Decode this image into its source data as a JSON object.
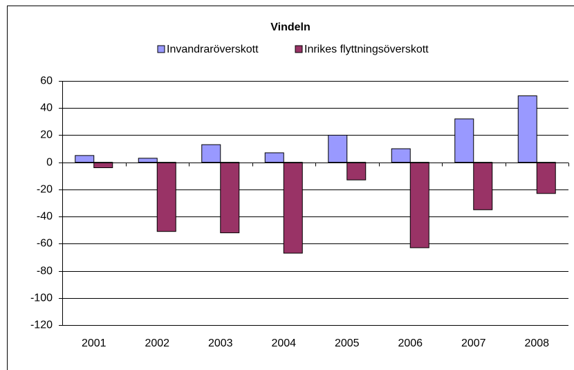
{
  "chart_data": {
    "type": "bar",
    "title": "Vindeln",
    "categories": [
      "2001",
      "2002",
      "2003",
      "2004",
      "2005",
      "2006",
      "2007",
      "2008"
    ],
    "series": [
      {
        "name": "Invandraröverskott",
        "color": "#9999ff",
        "values": [
          5,
          3,
          13,
          7,
          20,
          10,
          32,
          49
        ]
      },
      {
        "name": "Inrikes flyttningsöverskott",
        "color": "#993366",
        "values": [
          -4,
          -51,
          -52,
          -67,
          -13,
          -63,
          -35,
          -23
        ]
      }
    ],
    "ylim": [
      -120,
      60
    ],
    "yticks": [
      -120,
      -100,
      -80,
      -60,
      -40,
      -20,
      0,
      20,
      40,
      60
    ],
    "grid": true
  }
}
